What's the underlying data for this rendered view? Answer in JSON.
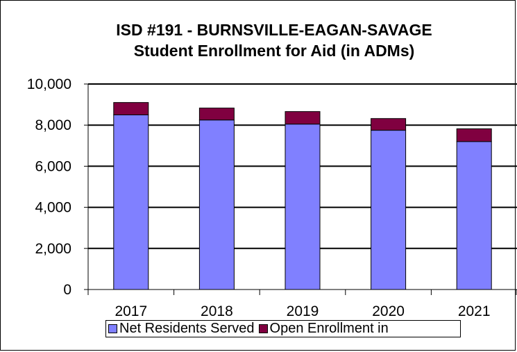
{
  "chart_data": {
    "type": "bar",
    "stacked": true,
    "title": "ISD #191 - BURNSVILLE-EAGAN-SAVAGE",
    "subtitle": "Student Enrollment for Aid (in ADMs)",
    "categories": [
      "2017",
      "2018",
      "2019",
      "2020",
      "2021"
    ],
    "series": [
      {
        "name": "Net Residents Served",
        "color": "#8080ff",
        "values": [
          8500,
          8250,
          8050,
          7750,
          7200
        ]
      },
      {
        "name": "Open Enrollment in",
        "color": "#800040",
        "values": [
          600,
          580,
          610,
          570,
          620
        ]
      }
    ],
    "ylim": [
      0,
      10000
    ],
    "yticks": [
      "0",
      "2,000",
      "4,000",
      "6,000",
      "8,000",
      "10,000"
    ],
    "grid": true,
    "legend_position": "bottom"
  }
}
